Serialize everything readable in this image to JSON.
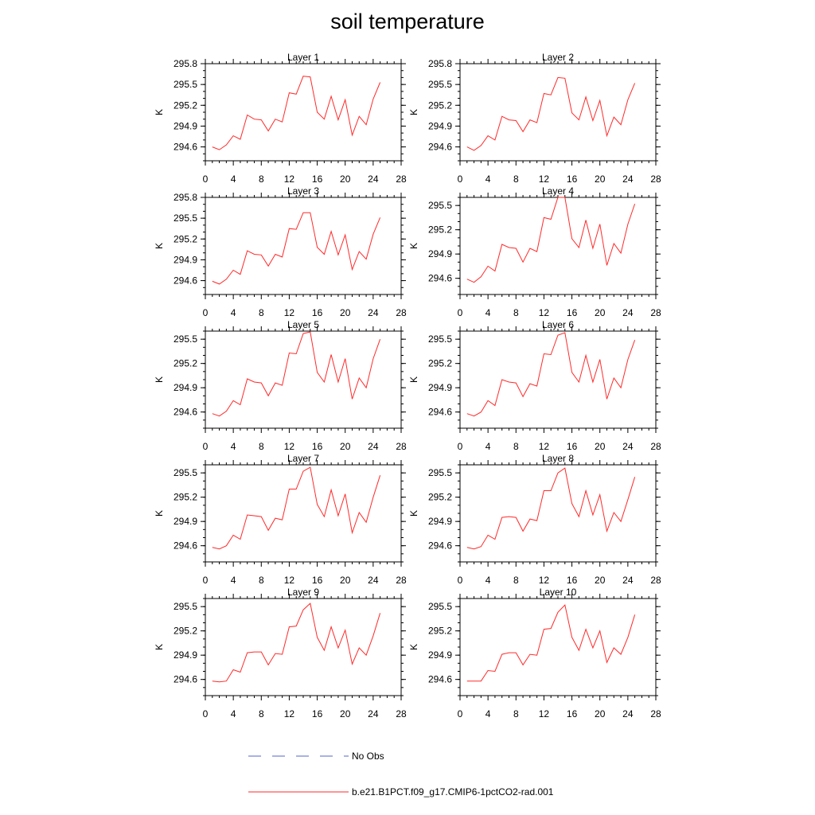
{
  "title": "soil temperature",
  "legend": {
    "items": [
      {
        "label": "No Obs",
        "style": "dashed",
        "color": "#5566cc"
      },
      {
        "label": "b.e21.B1PCT.f09_g17.CMIP6-1pctCO2-rad.001",
        "style": "solid",
        "color": "#ff2a2a"
      }
    ]
  },
  "chart_data": [
    {
      "type": "line",
      "title": "Layer 1",
      "ylabel": "K",
      "xlim": [
        0,
        28
      ],
      "ylim": [
        294.4,
        295.8
      ],
      "xticks": [
        "0",
        "4",
        "8",
        "12",
        "16",
        "20",
        "24",
        "28"
      ],
      "yticks": [
        "294.6",
        "294.9",
        "295.2",
        "295.5",
        "295.8"
      ],
      "series": [
        {
          "color": "#ff2a2a",
          "x": [
            1,
            2,
            3,
            4,
            5,
            6,
            7,
            8,
            9,
            10,
            11,
            12,
            13,
            14,
            15,
            16,
            17,
            18,
            19,
            20,
            21,
            22,
            23,
            24,
            25
          ],
          "y": [
            294.6,
            294.56,
            294.63,
            294.76,
            294.71,
            295.06,
            295.0,
            294.99,
            294.83,
            295.0,
            294.96,
            295.38,
            295.36,
            295.62,
            295.61,
            295.1,
            295.0,
            295.33,
            294.99,
            295.28,
            294.77,
            295.04,
            294.92,
            295.29,
            295.53
          ]
        }
      ]
    },
    {
      "type": "line",
      "title": "Layer 2",
      "ylabel": "K",
      "xlim": [
        0,
        28
      ],
      "ylim": [
        294.4,
        295.8
      ],
      "xticks": [
        "0",
        "4",
        "8",
        "12",
        "16",
        "20",
        "24",
        "28"
      ],
      "yticks": [
        "294.6",
        "294.9",
        "295.2",
        "295.5",
        "295.8"
      ],
      "series": [
        {
          "color": "#ff2a2a",
          "x": [
            1,
            2,
            3,
            4,
            5,
            6,
            7,
            8,
            9,
            10,
            11,
            12,
            13,
            14,
            15,
            16,
            17,
            18,
            19,
            20,
            21,
            22,
            23,
            24,
            25
          ],
          "y": [
            294.6,
            294.55,
            294.62,
            294.76,
            294.7,
            295.04,
            294.99,
            294.98,
            294.82,
            294.99,
            294.95,
            295.37,
            295.35,
            295.6,
            295.59,
            295.09,
            294.99,
            295.32,
            294.98,
            295.27,
            294.76,
            295.03,
            294.92,
            295.28,
            295.52
          ]
        }
      ]
    },
    {
      "type": "line",
      "title": "Layer 3",
      "ylabel": "K",
      "xlim": [
        0,
        28
      ],
      "ylim": [
        294.4,
        295.8
      ],
      "xticks": [
        "0",
        "4",
        "8",
        "12",
        "16",
        "20",
        "24",
        "28"
      ],
      "yticks": [
        "294.6",
        "294.9",
        "295.2",
        "295.5",
        "295.8"
      ],
      "series": [
        {
          "color": "#ff2a2a",
          "x": [
            1,
            2,
            3,
            4,
            5,
            6,
            7,
            8,
            9,
            10,
            11,
            12,
            13,
            14,
            15,
            16,
            17,
            18,
            19,
            20,
            21,
            22,
            23,
            24,
            25
          ],
          "y": [
            294.59,
            294.55,
            294.62,
            294.75,
            294.69,
            295.03,
            294.98,
            294.97,
            294.81,
            294.98,
            294.94,
            295.35,
            295.34,
            295.58,
            295.58,
            295.08,
            294.98,
            295.31,
            294.97,
            295.26,
            294.76,
            295.02,
            294.91,
            295.27,
            295.51
          ]
        }
      ]
    },
    {
      "type": "line",
      "title": "Layer 4",
      "ylabel": "K",
      "xlim": [
        0,
        28
      ],
      "ylim": [
        294.4,
        295.6
      ],
      "xticks": [
        "0",
        "4",
        "8",
        "12",
        "16",
        "20",
        "24",
        "28"
      ],
      "yticks": [
        "294.6",
        "294.9",
        "295.2",
        "295.5"
      ],
      "series": [
        {
          "color": "#ff2a2a",
          "x": [
            1,
            2,
            3,
            4,
            5,
            6,
            7,
            8,
            9,
            10,
            11,
            12,
            13,
            14,
            15,
            16,
            17,
            18,
            19,
            20,
            21,
            22,
            23,
            24,
            25
          ],
          "y": [
            294.59,
            294.55,
            294.62,
            294.75,
            294.69,
            295.02,
            294.98,
            294.97,
            294.8,
            294.97,
            294.93,
            295.35,
            295.33,
            295.6,
            295.6,
            295.09,
            294.98,
            295.32,
            294.97,
            295.27,
            294.76,
            295.03,
            294.91,
            295.27,
            295.52
          ]
        }
      ]
    },
    {
      "type": "line",
      "title": "Layer 5",
      "ylabel": "K",
      "xlim": [
        0,
        28
      ],
      "ylim": [
        294.4,
        295.6
      ],
      "xticks": [
        "0",
        "4",
        "8",
        "12",
        "16",
        "20",
        "24",
        "28"
      ],
      "yticks": [
        "294.6",
        "294.9",
        "295.2",
        "295.5"
      ],
      "series": [
        {
          "color": "#ff2a2a",
          "x": [
            1,
            2,
            3,
            4,
            5,
            6,
            7,
            8,
            9,
            10,
            11,
            12,
            13,
            14,
            15,
            16,
            17,
            18,
            19,
            20,
            21,
            22,
            23,
            24,
            25
          ],
          "y": [
            294.58,
            294.55,
            294.61,
            294.74,
            294.69,
            295.01,
            294.97,
            294.96,
            294.8,
            294.96,
            294.93,
            295.33,
            295.32,
            295.57,
            295.59,
            295.09,
            294.97,
            295.31,
            294.97,
            295.26,
            294.76,
            295.02,
            294.9,
            295.26,
            295.5
          ]
        }
      ]
    },
    {
      "type": "line",
      "title": "Layer 6",
      "ylabel": "K",
      "xlim": [
        0,
        28
      ],
      "ylim": [
        294.4,
        295.6
      ],
      "xticks": [
        "0",
        "4",
        "8",
        "12",
        "16",
        "20",
        "24",
        "28"
      ],
      "yticks": [
        "294.6",
        "294.9",
        "295.2",
        "295.5"
      ],
      "series": [
        {
          "color": "#ff2a2a",
          "x": [
            1,
            2,
            3,
            4,
            5,
            6,
            7,
            8,
            9,
            10,
            11,
            12,
            13,
            14,
            15,
            16,
            17,
            18,
            19,
            20,
            21,
            22,
            23,
            24,
            25
          ],
          "y": [
            294.58,
            294.55,
            294.6,
            294.74,
            294.68,
            295.0,
            294.97,
            294.96,
            294.79,
            294.95,
            294.92,
            295.32,
            295.31,
            295.55,
            295.58,
            295.09,
            294.97,
            295.3,
            294.97,
            295.25,
            294.76,
            295.02,
            294.9,
            295.25,
            295.49
          ]
        }
      ]
    },
    {
      "type": "line",
      "title": "Layer 7",
      "ylabel": "K",
      "xlim": [
        0,
        28
      ],
      "ylim": [
        294.4,
        295.6
      ],
      "xticks": [
        "0",
        "4",
        "8",
        "12",
        "16",
        "20",
        "24",
        "28"
      ],
      "yticks": [
        "294.6",
        "294.9",
        "295.2",
        "295.5"
      ],
      "series": [
        {
          "color": "#ff2a2a",
          "x": [
            1,
            2,
            3,
            4,
            5,
            6,
            7,
            8,
            9,
            10,
            11,
            12,
            13,
            14,
            15,
            16,
            17,
            18,
            19,
            20,
            21,
            22,
            23,
            24,
            25
          ],
          "y": [
            294.58,
            294.56,
            294.6,
            294.73,
            294.68,
            294.98,
            294.97,
            294.96,
            294.79,
            294.94,
            294.92,
            295.3,
            295.3,
            295.52,
            295.57,
            295.11,
            294.96,
            295.29,
            294.97,
            295.24,
            294.76,
            295.01,
            294.89,
            295.2,
            295.47
          ]
        }
      ]
    },
    {
      "type": "line",
      "title": "Layer 8",
      "ylabel": "K",
      "xlim": [
        0,
        28
      ],
      "ylim": [
        294.4,
        295.6
      ],
      "xticks": [
        "0",
        "4",
        "8",
        "12",
        "16",
        "20",
        "24",
        "28"
      ],
      "yticks": [
        "294.6",
        "294.9",
        "295.2",
        "295.5"
      ],
      "series": [
        {
          "color": "#ff2a2a",
          "x": [
            1,
            2,
            3,
            4,
            5,
            6,
            7,
            8,
            9,
            10,
            11,
            12,
            13,
            14,
            15,
            16,
            17,
            18,
            19,
            20,
            21,
            22,
            23,
            24,
            25
          ],
          "y": [
            294.58,
            294.56,
            294.59,
            294.73,
            294.68,
            294.95,
            294.96,
            294.95,
            294.78,
            294.93,
            294.91,
            295.28,
            295.28,
            295.5,
            295.56,
            295.12,
            294.96,
            295.28,
            294.98,
            295.23,
            294.78,
            295.01,
            294.9,
            295.17,
            295.45
          ]
        }
      ]
    },
    {
      "type": "line",
      "title": "Layer 9",
      "ylabel": "K",
      "xlim": [
        0,
        28
      ],
      "ylim": [
        294.4,
        295.6
      ],
      "xticks": [
        "0",
        "4",
        "8",
        "12",
        "16",
        "20",
        "24",
        "28"
      ],
      "yticks": [
        "294.6",
        "294.9",
        "295.2",
        "295.5"
      ],
      "series": [
        {
          "color": "#ff2a2a",
          "x": [
            1,
            2,
            3,
            4,
            5,
            6,
            7,
            8,
            9,
            10,
            11,
            12,
            13,
            14,
            15,
            16,
            17,
            18,
            19,
            20,
            21,
            22,
            23,
            24,
            25
          ],
          "y": [
            294.58,
            294.57,
            294.58,
            294.72,
            294.69,
            294.93,
            294.94,
            294.94,
            294.78,
            294.92,
            294.91,
            295.25,
            295.26,
            295.46,
            295.54,
            295.12,
            294.96,
            295.25,
            294.99,
            295.21,
            294.79,
            294.99,
            294.9,
            295.14,
            295.42
          ]
        }
      ]
    },
    {
      "type": "line",
      "title": "Layer 10",
      "ylabel": "K",
      "xlim": [
        0,
        28
      ],
      "ylim": [
        294.4,
        295.6
      ],
      "xticks": [
        "0",
        "4",
        "8",
        "12",
        "16",
        "20",
        "24",
        "28"
      ],
      "yticks": [
        "294.6",
        "294.9",
        "295.2",
        "295.5"
      ],
      "series": [
        {
          "color": "#ff2a2a",
          "x": [
            1,
            2,
            3,
            4,
            5,
            6,
            7,
            8,
            9,
            10,
            11,
            12,
            13,
            14,
            15,
            16,
            17,
            18,
            19,
            20,
            21,
            22,
            23,
            24,
            25
          ],
          "y": [
            294.58,
            294.58,
            294.58,
            294.71,
            294.7,
            294.91,
            294.93,
            294.93,
            294.78,
            294.91,
            294.9,
            295.22,
            295.23,
            295.43,
            295.52,
            295.12,
            294.96,
            295.22,
            294.99,
            295.2,
            294.81,
            294.99,
            294.91,
            295.12,
            295.4
          ]
        }
      ]
    }
  ]
}
